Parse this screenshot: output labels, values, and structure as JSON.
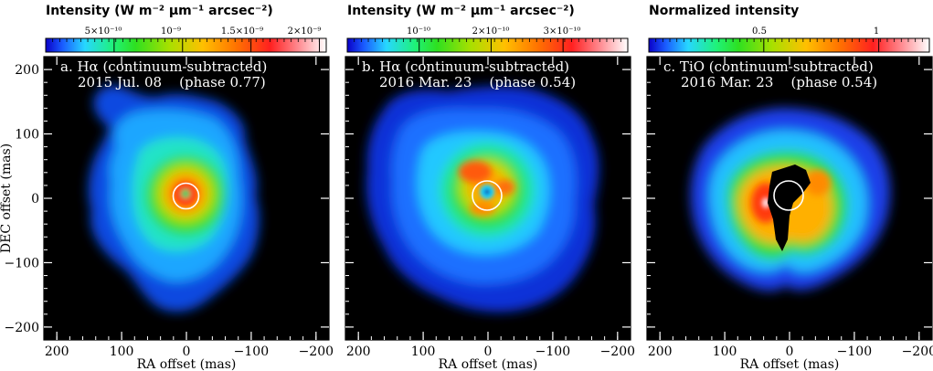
{
  "chart_data": [
    {
      "type": "heatmap",
      "panel": "a",
      "colorbar_title": "Intensity (W m⁻² μm⁻¹ arcsec⁻²)",
      "colorbar_ticks": [
        "5×10⁻¹⁰",
        "10⁻⁹",
        "1.5×10⁻⁹",
        "2×10⁻⁹"
      ],
      "colorbar_tick_values": [
        5e-10,
        1e-09,
        1.5e-09,
        2e-09
      ],
      "colorbar_range": [
        0,
        2.05e-09
      ],
      "title_line1": "a. Hα (continuum-subtracted)",
      "title_line2": "2015 Jul. 08    (phase 0.77)",
      "xlabel": "RA offset (mas)",
      "ylabel": "DEC offset (mas)",
      "x_ticks": [
        "200",
        "100",
        "0",
        "−100",
        "−200"
      ],
      "y_ticks": [
        "200",
        "100",
        "0",
        "−100",
        "−200"
      ],
      "x_tick_values": [
        200,
        100,
        0,
        -100,
        -200
      ],
      "y_tick_values": [
        200,
        100,
        0,
        -100,
        -200
      ],
      "xlim": [
        220,
        -220
      ],
      "ylim": [
        -220,
        220
      ],
      "star_circle_radius_mas": 20
    },
    {
      "type": "heatmap",
      "panel": "b",
      "colorbar_title": "Intensity (W m⁻² μm⁻¹ arcsec⁻²)",
      "colorbar_ticks": [
        "10⁻¹⁰",
        "2×10⁻¹⁰",
        "3×10⁻¹⁰"
      ],
      "colorbar_tick_values": [
        1e-10,
        2e-10,
        3e-10
      ],
      "colorbar_range": [
        0,
        3.9e-10
      ],
      "title_line1": "b. Hα (continuum-subtracted)",
      "title_line2": "2016 Mar. 23    (phase 0.54)",
      "xlabel": "RA offset (mas)",
      "ylabel": "",
      "x_ticks": [
        "200",
        "100",
        "0",
        "−100",
        "−200"
      ],
      "y_ticks": [],
      "x_tick_values": [
        200,
        100,
        0,
        -100,
        -200
      ],
      "y_tick_values": [
        200,
        100,
        0,
        -100,
        -200
      ],
      "xlim": [
        220,
        -220
      ],
      "ylim": [
        -220,
        220
      ],
      "star_circle_radius_mas": 20
    },
    {
      "type": "heatmap",
      "panel": "c",
      "colorbar_title": "Normalized intensity",
      "colorbar_ticks": [
        "0.5",
        "1"
      ],
      "colorbar_tick_values": [
        0.5,
        1.0
      ],
      "colorbar_range": [
        0,
        1.22
      ],
      "title_line1": "c. TiO (continuum-subtracted)",
      "title_line2": "2016 Mar. 23    (phase 0.54)",
      "xlabel": "RA offset (mas)",
      "ylabel": "",
      "x_ticks": [
        "200",
        "100",
        "0",
        "−100",
        "−200"
      ],
      "y_ticks": [],
      "x_tick_values": [
        200,
        100,
        0,
        -100,
        -200
      ],
      "y_tick_values": [
        200,
        100,
        0,
        -100,
        -200
      ],
      "xlim": [
        220,
        -220
      ],
      "ylim": [
        -220,
        220
      ],
      "star_circle_radius_mas": 20
    }
  ]
}
